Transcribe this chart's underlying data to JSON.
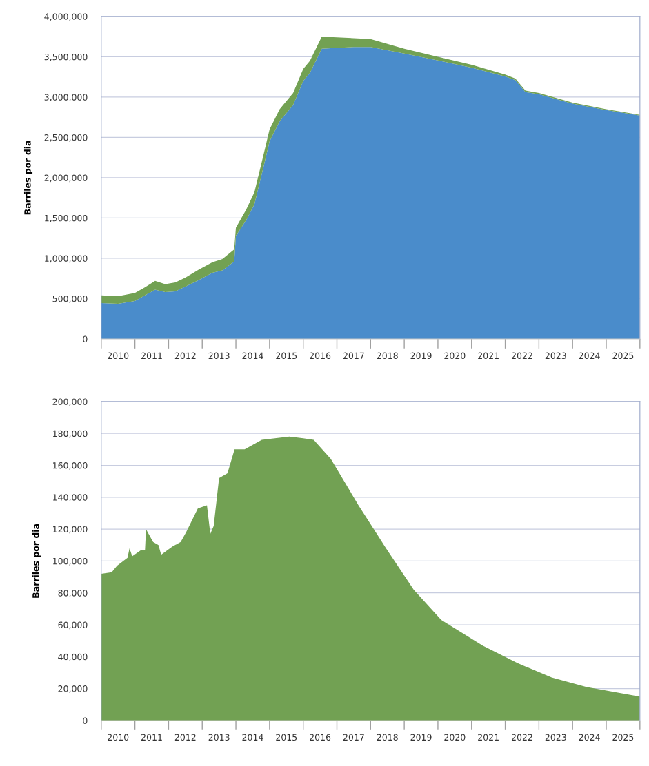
{
  "chart_data": [
    {
      "type": "area",
      "stacked": true,
      "ylabel": "Barriles por dia",
      "grid": "y",
      "x": [
        2010.0,
        2010.5,
        2011.0,
        2011.3,
        2011.6,
        2011.9,
        2012.2,
        2012.5,
        2012.9,
        2013.3,
        2013.6,
        2013.95,
        2014.0,
        2014.3,
        2014.55,
        2014.8,
        2015.0,
        2015.3,
        2015.7,
        2016.0,
        2016.2,
        2016.55,
        2017.0,
        2017.5,
        2018.0,
        2018.5,
        2019.0,
        2020.0,
        2021.0,
        2022.0,
        2022.3,
        2022.6,
        2023.0,
        2024.0,
        2025.0,
        2026.0
      ],
      "series": [
        {
          "color": "#4a8ccb",
          "values": [
            445000,
            435000,
            470000,
            540000,
            610000,
            580000,
            590000,
            650000,
            730000,
            820000,
            850000,
            960000,
            1280000,
            1470000,
            1670000,
            2100000,
            2450000,
            2700000,
            2900000,
            3200000,
            3300000,
            3600000,
            3610000,
            3620000,
            3620000,
            3580000,
            3540000,
            3455000,
            3365000,
            3255000,
            3210000,
            3062000,
            3035000,
            2918000,
            2840000,
            2770000
          ]
        },
        {
          "color": "#72a153",
          "values": [
            95000,
            95000,
            100000,
            100000,
            110000,
            100000,
            110000,
            110000,
            130000,
            130000,
            140000,
            150000,
            100000,
            130000,
            150000,
            150000,
            150000,
            150000,
            150000,
            150000,
            150000,
            150000,
            130000,
            110000,
            100000,
            80000,
            60000,
            45000,
            35000,
            25000,
            20000,
            18000,
            15000,
            12000,
            10000,
            10000
          ]
        }
      ],
      "xlim": [
        2010,
        2026
      ],
      "xticks": [
        {
          "value": 2010,
          "label": null
        },
        {
          "value": 2010.5,
          "label": "2010"
        },
        {
          "value": 2011,
          "label": null
        },
        {
          "value": 2011.5,
          "label": "2011"
        },
        {
          "value": 2012,
          "label": null
        },
        {
          "value": 2012.5,
          "label": "2012"
        },
        {
          "value": 2013,
          "label": null
        },
        {
          "value": 2013.5,
          "label": "2013"
        },
        {
          "value": 2014,
          "label": null
        },
        {
          "value": 2014.5,
          "label": "2014"
        },
        {
          "value": 2015,
          "label": null
        },
        {
          "value": 2015.5,
          "label": "2015"
        },
        {
          "value": 2016,
          "label": null
        },
        {
          "value": 2016.5,
          "label": "2016"
        },
        {
          "value": 2017,
          "label": null
        },
        {
          "value": 2017.5,
          "label": "2017"
        },
        {
          "value": 2018,
          "label": null
        },
        {
          "value": 2018.5,
          "label": "2018"
        },
        {
          "value": 2019,
          "label": null
        },
        {
          "value": 2019.5,
          "label": "2019"
        },
        {
          "value": 2020,
          "label": null
        },
        {
          "value": 2020.5,
          "label": "2020"
        },
        {
          "value": 2021,
          "label": null
        },
        {
          "value": 2021.5,
          "label": "2021"
        },
        {
          "value": 2022,
          "label": null
        },
        {
          "value": 2022.5,
          "label": "2022"
        },
        {
          "value": 2023,
          "label": null
        },
        {
          "value": 2023.5,
          "label": "2023"
        },
        {
          "value": 2024,
          "label": null
        },
        {
          "value": 2024.5,
          "label": "2024"
        },
        {
          "value": 2025,
          "label": null
        },
        {
          "value": 2025.5,
          "label": "2025"
        },
        {
          "value": 2026,
          "label": null
        }
      ],
      "ylim": [
        0,
        4000000
      ],
      "yticks": [
        {
          "value": 0,
          "label": "0"
        },
        {
          "value": 500000,
          "label": "500,000"
        },
        {
          "value": 1000000,
          "label": "1,000,000"
        },
        {
          "value": 1500000,
          "label": "1,500,000"
        },
        {
          "value": 2000000,
          "label": "2,000,000"
        },
        {
          "value": 2500000,
          "label": "2,500,000"
        },
        {
          "value": 3000000,
          "label": "3,000,000"
        },
        {
          "value": 3500000,
          "label": "3,500,000"
        },
        {
          "value": 4000000,
          "label": "4,000,000"
        }
      ]
    },
    {
      "type": "area",
      "ylabel": "Barriles por dia",
      "grid": "y",
      "x": [
        2010.0,
        2010.31,
        2010.47,
        2010.78,
        2010.84,
        2010.92,
        2011.19,
        2011.3,
        2011.33,
        2011.54,
        2011.7,
        2011.78,
        2012.11,
        2012.36,
        2012.52,
        2012.87,
        2013.14,
        2013.24,
        2013.34,
        2013.5,
        2013.75,
        2013.96,
        2014.26,
        2014.77,
        2015.59,
        2016.0,
        2016.31,
        2016.82,
        2017.64,
        2018.46,
        2019.28,
        2020.1,
        2021.33,
        2022.36,
        2023.38,
        2024.41,
        2026.0
      ],
      "series": [
        {
          "color": "#72a153",
          "values": [
            92000,
            93000,
            97000,
            102000,
            108000,
            103000,
            107000,
            107000,
            120000,
            112000,
            110000,
            104000,
            109000,
            112000,
            118000,
            133000,
            135000,
            117000,
            122000,
            152000,
            155000,
            170000,
            170000,
            176000,
            178000,
            177000,
            176000,
            164000,
            135000,
            108000,
            82000,
            63000,
            47000,
            36000,
            27000,
            21000,
            15000
          ]
        }
      ],
      "xlim": [
        2010,
        2026
      ],
      "xticks": [
        {
          "value": 2010,
          "label": null
        },
        {
          "value": 2010.5,
          "label": "2010"
        },
        {
          "value": 2011,
          "label": null
        },
        {
          "value": 2011.5,
          "label": "2011"
        },
        {
          "value": 2012,
          "label": null
        },
        {
          "value": 2012.5,
          "label": "2012"
        },
        {
          "value": 2013,
          "label": null
        },
        {
          "value": 2013.5,
          "label": "2013"
        },
        {
          "value": 2014,
          "label": null
        },
        {
          "value": 2014.5,
          "label": "2014"
        },
        {
          "value": 2015,
          "label": null
        },
        {
          "value": 2015.5,
          "label": "2015"
        },
        {
          "value": 2016,
          "label": null
        },
        {
          "value": 2016.5,
          "label": "2016"
        },
        {
          "value": 2017,
          "label": null
        },
        {
          "value": 2017.5,
          "label": "2017"
        },
        {
          "value": 2018,
          "label": null
        },
        {
          "value": 2018.5,
          "label": "2018"
        },
        {
          "value": 2019,
          "label": null
        },
        {
          "value": 2019.5,
          "label": "2019"
        },
        {
          "value": 2020,
          "label": null
        },
        {
          "value": 2020.5,
          "label": "2020"
        },
        {
          "value": 2021,
          "label": null
        },
        {
          "value": 2021.5,
          "label": "2021"
        },
        {
          "value": 2022,
          "label": null
        },
        {
          "value": 2022.5,
          "label": "2022"
        },
        {
          "value": 2023,
          "label": null
        },
        {
          "value": 2023.5,
          "label": "2023"
        },
        {
          "value": 2024,
          "label": null
        },
        {
          "value": 2024.5,
          "label": "2024"
        },
        {
          "value": 2025,
          "label": null
        },
        {
          "value": 2025.5,
          "label": "2025"
        },
        {
          "value": 2026,
          "label": null
        }
      ],
      "ylim": [
        0,
        200000
      ],
      "yticks": [
        {
          "value": 0,
          "label": "0"
        },
        {
          "value": 20000,
          "label": "20,000"
        },
        {
          "value": 40000,
          "label": "40,000"
        },
        {
          "value": 60000,
          "label": "60,000"
        },
        {
          "value": 80000,
          "label": "80,000"
        },
        {
          "value": 100000,
          "label": "100,000"
        },
        {
          "value": 120000,
          "label": "120,000"
        },
        {
          "value": 140000,
          "label": "140,000"
        },
        {
          "value": 160000,
          "label": "160,000"
        },
        {
          "value": 180000,
          "label": "180,000"
        },
        {
          "value": 200000,
          "label": "200,000"
        }
      ]
    }
  ]
}
